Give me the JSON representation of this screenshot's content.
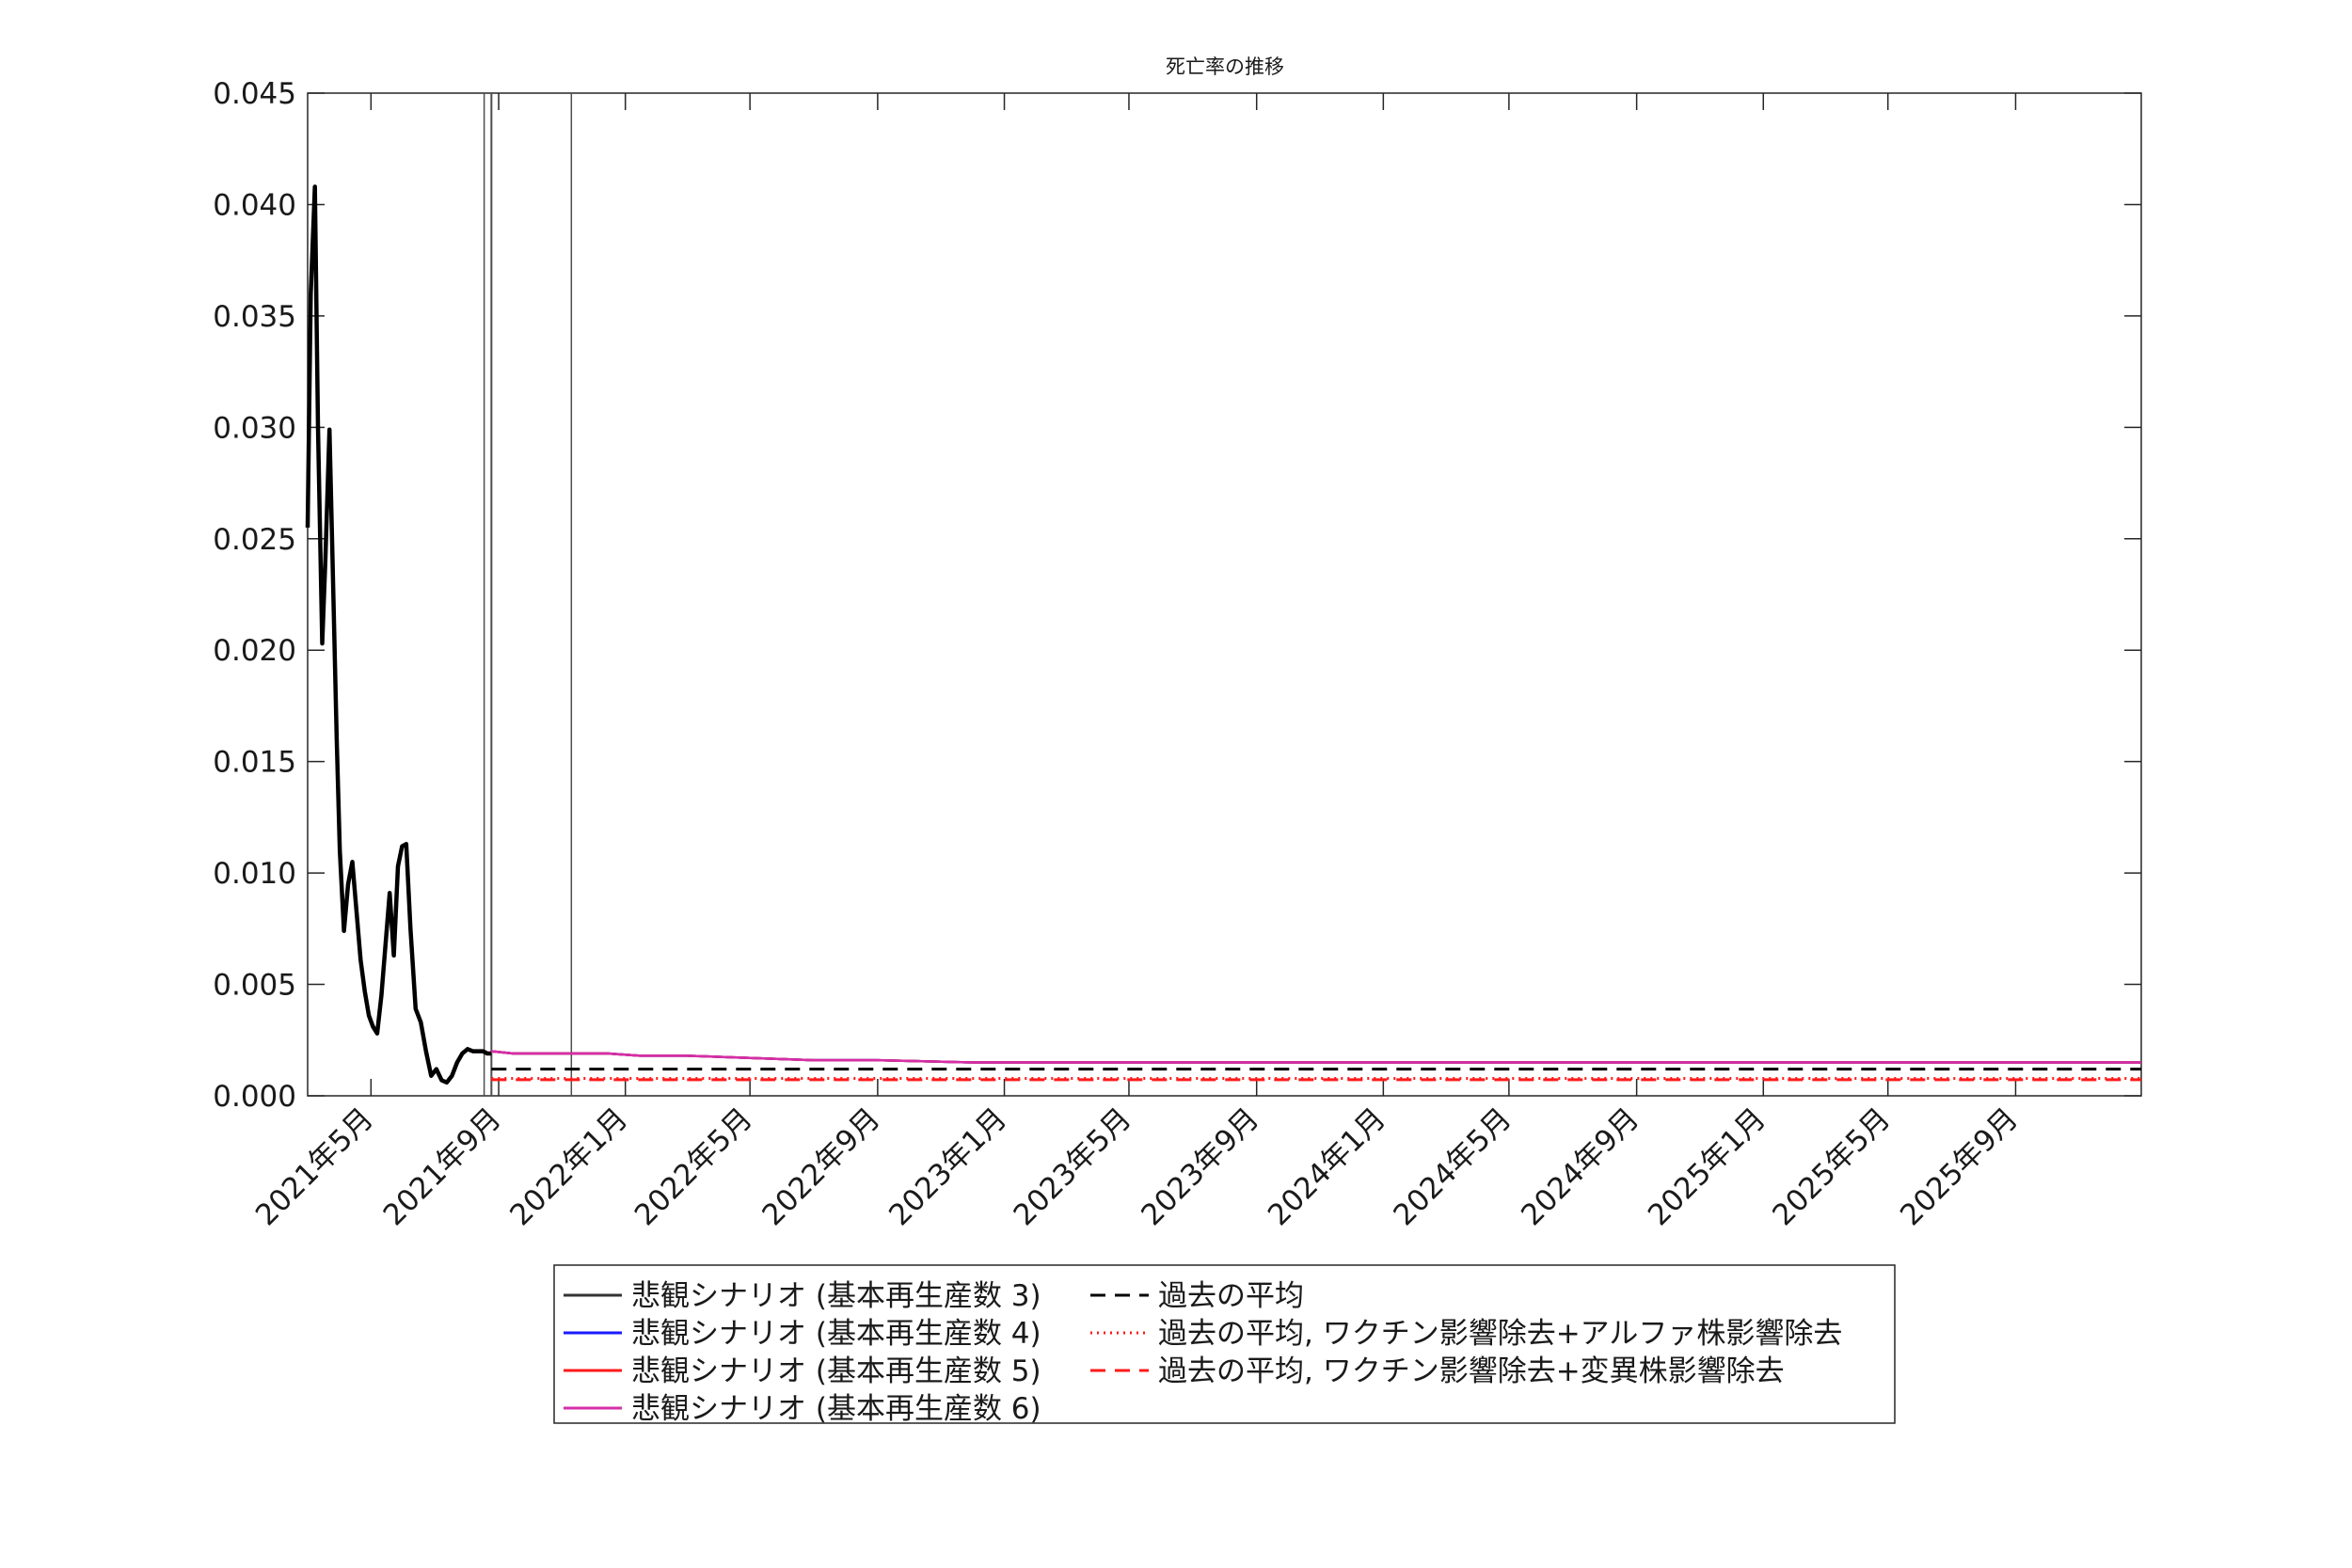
{
  "chart_data": {
    "type": "line",
    "title": "死亡率の推移",
    "xlabel": "",
    "ylabel": "",
    "ylim": [
      0,
      0.045
    ],
    "yticks": [
      0.0,
      0.005,
      0.01,
      0.015,
      0.02,
      0.025,
      0.03,
      0.035,
      0.04,
      0.045
    ],
    "ytick_labels": [
      "0.000",
      "0.005",
      "0.010",
      "0.015",
      "0.020",
      "0.025",
      "0.030",
      "0.035",
      "0.040",
      "0.045"
    ],
    "xlim": [
      "2021-03-01",
      "2025-12-31"
    ],
    "xticks": [
      "2021-05-01",
      "2021-09-01",
      "2022-01-01",
      "2022-05-01",
      "2022-09-01",
      "2023-01-01",
      "2023-05-01",
      "2023-09-01",
      "2024-01-01",
      "2024-05-01",
      "2024-09-01",
      "2025-01-01",
      "2025-05-01",
      "2025-09-01"
    ],
    "xtick_labels": [
      "2021年5月",
      "2021年9月",
      "2022年1月",
      "2022年5月",
      "2022年9月",
      "2023年1月",
      "2023年5月",
      "2023年9月",
      "2024年1月",
      "2024年5月",
      "2024年9月",
      "2025年1月",
      "2025年5月",
      "2025年9月"
    ],
    "vertical_lines": [
      "2021-08-18",
      "2021-08-25",
      "2021-11-10"
    ],
    "grid": false,
    "legend_position": "bottom",
    "historical": {
      "color": "#000000",
      "x": [
        "2021-03-01",
        "2021-03-04",
        "2021-03-08",
        "2021-03-11",
        "2021-03-15",
        "2021-03-18",
        "2021-03-22",
        "2021-03-25",
        "2021-03-29",
        "2021-04-01",
        "2021-04-05",
        "2021-04-09",
        "2021-04-13",
        "2021-04-17",
        "2021-04-21",
        "2021-04-25",
        "2021-04-29",
        "2021-05-03",
        "2021-05-07",
        "2021-05-11",
        "2021-05-15",
        "2021-05-19",
        "2021-05-23",
        "2021-05-27",
        "2021-05-31",
        "2021-06-04",
        "2021-06-08",
        "2021-06-13",
        "2021-06-18",
        "2021-06-23",
        "2021-06-28",
        "2021-07-03",
        "2021-07-08",
        "2021-07-13",
        "2021-07-18",
        "2021-07-23",
        "2021-07-28",
        "2021-08-02",
        "2021-08-07",
        "2021-08-12",
        "2021-08-17",
        "2021-08-21",
        "2021-08-25"
      ],
      "y": [
        0.0255,
        0.036,
        0.0408,
        0.03,
        0.0203,
        0.024,
        0.0299,
        0.024,
        0.016,
        0.011,
        0.0074,
        0.0095,
        0.0105,
        0.0083,
        0.0061,
        0.0047,
        0.0036,
        0.0031,
        0.0028,
        0.0045,
        0.0068,
        0.0091,
        0.0063,
        0.0103,
        0.0112,
        0.0113,
        0.0075,
        0.0039,
        0.0033,
        0.002,
        0.0009,
        0.0012,
        0.0007,
        0.0006,
        0.0009,
        0.0015,
        0.0019,
        0.0021,
        0.002,
        0.002,
        0.002,
        0.0019,
        0.0019
      ]
    },
    "series": [
      {
        "name": "悲観シナリオ (基本再生産数 3)",
        "color": "#333333",
        "style": "solid",
        "x": [
          "2021-08-25",
          "2021-09-15",
          "2021-10-15",
          "2021-11-15",
          "2021-12-15",
          "2022-01-15",
          "2022-03-01",
          "2022-05-01",
          "2022-07-01",
          "2022-09-01",
          "2022-12-01",
          "2023-06-01",
          "2024-01-01",
          "2025-01-01",
          "2025-12-31"
        ],
        "y": [
          0.002,
          0.0019,
          0.0019,
          0.0019,
          0.0019,
          0.0018,
          0.0018,
          0.0017,
          0.0016,
          0.0016,
          0.0015,
          0.0015,
          0.0015,
          0.0015,
          0.0015
        ]
      },
      {
        "name": "悲観シナリオ (基本再生産数 4)",
        "color": "#1a1aff",
        "style": "solid",
        "x": [
          "2021-08-25",
          "2021-09-15",
          "2021-10-15",
          "2021-11-15",
          "2021-12-15",
          "2022-01-15",
          "2022-03-01",
          "2022-05-01",
          "2022-07-01",
          "2022-09-01",
          "2022-12-01",
          "2023-06-01",
          "2024-01-01",
          "2025-01-01",
          "2025-12-31"
        ],
        "y": [
          0.002,
          0.0019,
          0.0019,
          0.0019,
          0.0019,
          0.0018,
          0.0018,
          0.0017,
          0.0016,
          0.0016,
          0.0015,
          0.0015,
          0.0015,
          0.0015,
          0.0015
        ]
      },
      {
        "name": "悲観シナリオ (基本再生産数 5)",
        "color": "#ff1a1a",
        "style": "solid",
        "x": [
          "2021-08-25",
          "2021-09-15",
          "2021-10-15",
          "2021-11-15",
          "2021-12-15",
          "2022-01-15",
          "2022-03-01",
          "2022-05-01",
          "2022-07-01",
          "2022-09-01",
          "2022-12-01",
          "2023-06-01",
          "2024-01-01",
          "2025-01-01",
          "2025-12-31"
        ],
        "y": [
          0.002,
          0.0019,
          0.0019,
          0.0019,
          0.0019,
          0.0018,
          0.0018,
          0.0017,
          0.0016,
          0.0016,
          0.0015,
          0.0015,
          0.0015,
          0.0015,
          0.0015
        ]
      },
      {
        "name": "悲観シナリオ (基本再生産数 6)",
        "color": "#d62ea8",
        "style": "solid",
        "x": [
          "2021-08-25",
          "2021-09-15",
          "2021-10-15",
          "2021-11-15",
          "2021-12-15",
          "2022-01-15",
          "2022-03-01",
          "2022-05-01",
          "2022-07-01",
          "2022-09-01",
          "2022-12-01",
          "2023-06-01",
          "2024-01-01",
          "2025-01-01",
          "2025-12-31"
        ],
        "y": [
          0.002,
          0.0019,
          0.0019,
          0.0019,
          0.0019,
          0.0018,
          0.0018,
          0.0017,
          0.0016,
          0.0016,
          0.0015,
          0.0015,
          0.0015,
          0.0015,
          0.0015
        ]
      },
      {
        "name": "過去の平均",
        "color": "#000000",
        "style": "dashed",
        "x": [
          "2021-08-25",
          "2025-12-31"
        ],
        "y": [
          0.0012,
          0.0012
        ]
      },
      {
        "name": "過去の平均, ワクチン影響除去+アルファ株影響除去",
        "color": "#ff1a1a",
        "style": "dotted",
        "x": [
          "2021-08-25",
          "2025-12-31"
        ],
        "y": [
          0.00078,
          0.00078
        ]
      },
      {
        "name": "過去の平均, ワクチン影響除去+変異株影響除去",
        "color": "#ff1a1a",
        "style": "dashed",
        "x": [
          "2021-08-25",
          "2025-12-31"
        ],
        "y": [
          0.00072,
          0.00072
        ]
      }
    ]
  }
}
